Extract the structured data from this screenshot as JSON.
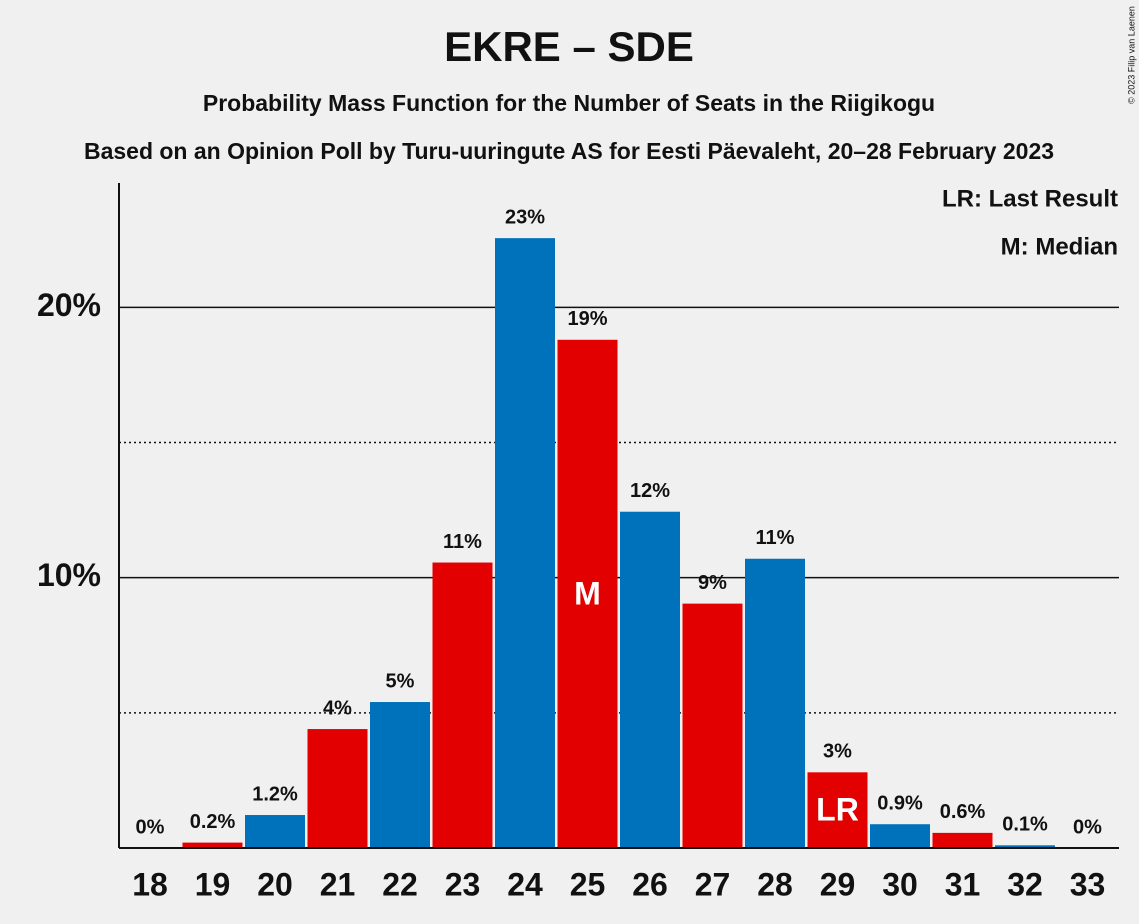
{
  "chart_data": {
    "type": "bar",
    "title": "EKRE – SDE",
    "subtitle": "Probability Mass Function for the Number of Seats in the Riigikogu",
    "subtitle2": "Based on an Opinion Poll by Turu-uuringute AS for Eesti Päevaleht, 20–28 February 2023",
    "copyright": "© 2023 Filip van Laenen",
    "legend": [
      "LR: Last Result",
      "M: Median"
    ],
    "categories": [
      18,
      19,
      20,
      21,
      22,
      23,
      24,
      25,
      26,
      27,
      28,
      29,
      30,
      31,
      32,
      33
    ],
    "values": [
      0,
      0.2,
      1.22,
      4.4,
      5.4,
      10.56,
      22.56,
      18.8,
      12.44,
      9.04,
      10.7,
      2.8,
      0.88,
      0.56,
      0.1,
      0
    ],
    "value_labels": [
      "0%",
      "0.2%",
      "1.2%",
      "4%",
      "5%",
      "11%",
      "23%",
      "19%",
      "12%",
      "9%",
      "11%",
      "3%",
      "0.9%",
      "0.6%",
      "0.1%",
      "0%"
    ],
    "colors": [
      "#0072bb",
      "#e30000",
      "#0072bb",
      "#e30000",
      "#0072bb",
      "#e30000",
      "#0072bb",
      "#e30000",
      "#0072bb",
      "#e30000",
      "#0072bb",
      "#e30000",
      "#0072bb",
      "#e30000",
      "#0072bb",
      "#e30000"
    ],
    "markers": [
      {
        "category": 25,
        "label": "M"
      },
      {
        "category": 29,
        "label": "LR"
      }
    ],
    "ylim": [
      0,
      24.6
    ],
    "yticks": [
      {
        "value": 10,
        "label": "10%"
      },
      {
        "value": 20,
        "label": "20%"
      }
    ],
    "minor_yticks": [
      5,
      15
    ],
    "grid": true
  }
}
